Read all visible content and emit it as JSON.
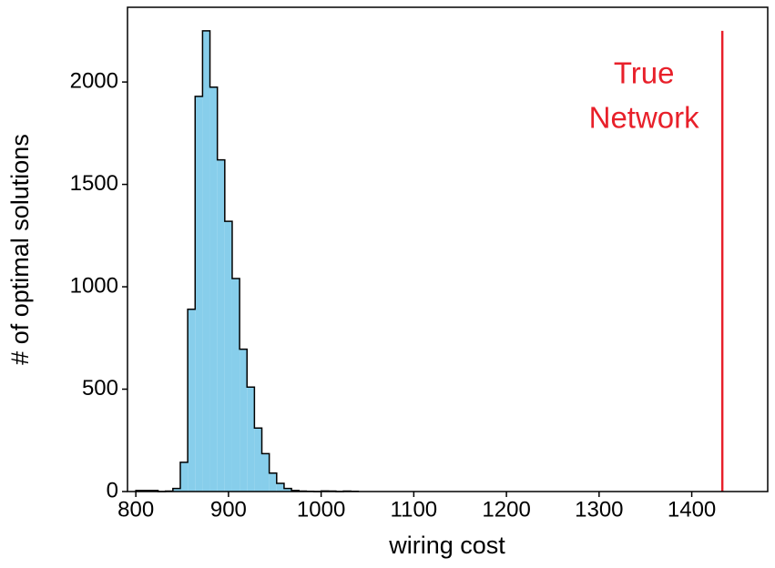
{
  "chart_data": {
    "type": "histogram",
    "xlabel": "wiring cost",
    "ylabel": "# of optimal solutions",
    "bins": [
      800,
      808,
      816,
      824,
      832,
      840,
      848,
      856,
      864,
      872,
      880,
      888,
      896,
      904,
      912,
      920,
      928,
      936,
      944,
      952,
      960,
      968,
      976,
      984,
      992,
      1000,
      1008,
      1016,
      1024,
      1032,
      1040
    ],
    "counts": [
      5,
      5,
      5,
      0,
      2,
      15,
      143,
      890,
      1930,
      2250,
      1975,
      1620,
      1320,
      1040,
      695,
      510,
      310,
      185,
      90,
      40,
      15,
      5,
      2,
      1,
      0,
      3,
      2,
      0,
      2,
      1
    ],
    "color": "#87ceeb",
    "edgecolor": "#000000",
    "xlim": [
      791,
      1482
    ],
    "ylim": [
      0,
      2365
    ],
    "xticks": [
      800,
      900,
      1000,
      1100,
      1200,
      1300,
      1400
    ],
    "yticks": [
      0,
      500,
      1000,
      1500,
      2000
    ],
    "annotation": {
      "x": 1433,
      "y_range": [
        0,
        2250
      ],
      "text": [
        "True",
        "Network"
      ],
      "color": "#e8202a"
    }
  }
}
